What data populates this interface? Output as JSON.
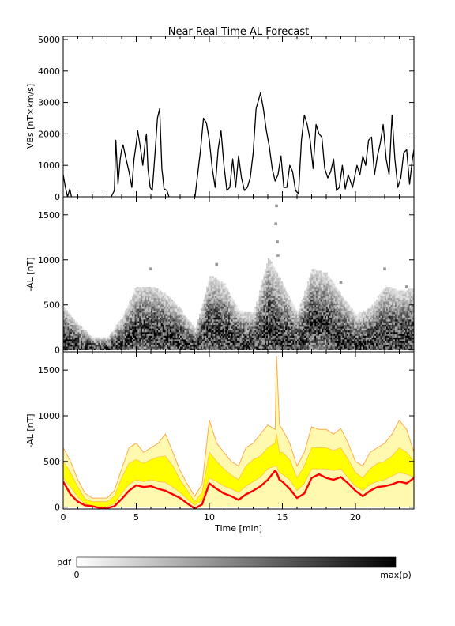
{
  "title": "Near Real Time AL Forecast",
  "colorbar": {
    "label": "pdf",
    "min_label": "0",
    "max_label": "max(p)",
    "colors": [
      "#ffffff",
      "#000000"
    ]
  },
  "chart_data": [
    {
      "panel": "top",
      "type": "line",
      "ylabel": "VBs [nT×km/s]",
      "ylim": [
        0,
        5100
      ],
      "yticks": [
        0,
        1000,
        2000,
        3000,
        4000,
        5000
      ],
      "xlim": [
        0,
        24
      ],
      "color": "#000000",
      "x": [
        0,
        0.15,
        0.3,
        0.45,
        0.6,
        1.0,
        2.0,
        3.2,
        3.5,
        3.6,
        3.75,
        3.9,
        4.0,
        4.1,
        4.3,
        4.5,
        4.7,
        4.85,
        5.0,
        5.1,
        5.3,
        5.45,
        5.6,
        5.7,
        5.8,
        5.95,
        6.1,
        6.3,
        6.45,
        6.6,
        6.75,
        6.9,
        7.1,
        7.3,
        7.5,
        7.7,
        8.0,
        8.5,
        9.0,
        9.4,
        9.6,
        9.8,
        10.0,
        10.2,
        10.4,
        10.6,
        10.8,
        11.0,
        11.2,
        11.4,
        11.6,
        11.8,
        12.0,
        12.2,
        12.4,
        12.6,
        12.8,
        13.0,
        13.2,
        13.5,
        13.7,
        13.9,
        14.1,
        14.3,
        14.5,
        14.7,
        14.9,
        15.1,
        15.3,
        15.5,
        15.7,
        15.9,
        16.1,
        16.3,
        16.5,
        16.7,
        16.9,
        17.1,
        17.3,
        17.5,
        17.7,
        17.9,
        18.1,
        18.3,
        18.5,
        18.7,
        18.9,
        19.1,
        19.3,
        19.5,
        19.8,
        20.1,
        20.3,
        20.5,
        20.7,
        20.9,
        21.1,
        21.3,
        21.5,
        21.7,
        21.9,
        22.1,
        22.3,
        22.5,
        22.7,
        22.9,
        23.1,
        23.3,
        23.5,
        23.7,
        23.9,
        24.0
      ],
      "values": [
        700,
        300,
        0,
        250,
        -80,
        -80,
        -80,
        -80,
        200,
        1800,
        400,
        1200,
        1500,
        1650,
        1200,
        800,
        300,
        1200,
        1700,
        2100,
        1500,
        1000,
        1700,
        2000,
        900,
        300,
        200,
        1500,
        2500,
        2800,
        900,
        250,
        200,
        -80,
        -80,
        -80,
        -80,
        -80,
        -80,
        1500,
        2500,
        2350,
        1800,
        900,
        300,
        1500,
        2100,
        1000,
        200,
        300,
        1200,
        300,
        1300,
        600,
        200,
        300,
        600,
        1400,
        2800,
        3300,
        2800,
        2100,
        1600,
        900,
        500,
        700,
        1300,
        300,
        300,
        1000,
        800,
        200,
        100,
        1800,
        2600,
        2300,
        1800,
        900,
        2300,
        2000,
        1900,
        900,
        600,
        800,
        1200,
        200,
        300,
        1000,
        250,
        700,
        300,
        1000,
        700,
        1300,
        1000,
        1800,
        1900,
        700,
        1300,
        1700,
        2300,
        1200,
        700,
        2600,
        1200,
        300,
        600,
        1400,
        1500,
        400,
        1200,
        1500
      ]
    },
    {
      "panel": "middle",
      "type": "heatmap",
      "ylabel": "-AL [nT]",
      "ylim": [
        -20,
        1700
      ],
      "yticks": [
        0,
        500,
        1000,
        1500
      ],
      "xlim": [
        0,
        24
      ],
      "x": [
        0,
        1,
        2,
        3,
        4,
        5,
        6,
        7,
        8,
        9,
        10,
        11,
        12,
        13,
        14,
        15,
        16,
        17,
        18,
        19,
        20,
        21,
        22,
        23,
        24
      ],
      "center": [
        120,
        60,
        20,
        20,
        80,
        250,
        250,
        200,
        120,
        40,
        280,
        220,
        100,
        80,
        300,
        180,
        80,
        350,
        300,
        150,
        80,
        100,
        200,
        180,
        200
      ],
      "spread": [
        200,
        120,
        60,
        60,
        150,
        250,
        250,
        230,
        180,
        100,
        300,
        280,
        180,
        180,
        400,
        300,
        180,
        300,
        300,
        250,
        170,
        200,
        280,
        260,
        260
      ],
      "outliers": [
        [
          14.6,
          1600
        ],
        [
          14.55,
          1400
        ],
        [
          14.65,
          1200
        ],
        [
          14.7,
          1050
        ],
        [
          10.5,
          950
        ],
        [
          6.0,
          900
        ],
        [
          22.0,
          900
        ],
        [
          19.0,
          750
        ],
        [
          23.5,
          700
        ]
      ],
      "colors": [
        "#ffffff",
        "#000000"
      ]
    },
    {
      "panel": "bottom",
      "type": "area",
      "ylabel": "-AL [nT]",
      "xlabel": "Time [min]",
      "ylim": [
        -20,
        1700
      ],
      "yticks": [
        0,
        500,
        1000,
        1500
      ],
      "xlim": [
        0,
        24
      ],
      "xticks": [
        0,
        5,
        10,
        15,
        20
      ],
      "x": [
        0,
        0.5,
        1,
        1.5,
        2,
        2.5,
        3,
        3.5,
        4,
        4.5,
        5,
        5.5,
        6,
        6.5,
        7,
        7.5,
        8,
        8.5,
        9,
        9.5,
        10,
        10.5,
        11,
        11.5,
        12,
        12.5,
        13,
        13.5,
        14,
        14.5,
        14.6,
        14.8,
        15,
        15.5,
        16,
        16.5,
        17,
        17.5,
        18,
        18.5,
        19,
        19.5,
        20,
        20.5,
        21,
        21.5,
        22,
        22.5,
        23,
        23.5,
        24
      ],
      "series": [
        {
          "role": "upper_envelope",
          "color": "#ffa94d",
          "values": [
            650,
            500,
            300,
            150,
            100,
            100,
            100,
            180,
            420,
            650,
            700,
            600,
            650,
            700,
            800,
            600,
            400,
            250,
            120,
            250,
            950,
            700,
            600,
            500,
            450,
            650,
            700,
            800,
            900,
            850,
            1650,
            900,
            850,
            700,
            450,
            600,
            880,
            850,
            850,
            800,
            860,
            700,
            500,
            450,
            600,
            650,
            700,
            800,
            950,
            850,
            600
          ]
        },
        {
          "role": "band_upper",
          "color": "#ffff00",
          "values": [
            500,
            380,
            220,
            90,
            60,
            60,
            60,
            120,
            320,
            480,
            520,
            480,
            520,
            550,
            560,
            450,
            300,
            180,
            60,
            160,
            600,
            500,
            420,
            350,
            300,
            450,
            520,
            560,
            650,
            700,
            800,
            600,
            600,
            520,
            320,
            450,
            650,
            650,
            650,
            620,
            650,
            520,
            380,
            320,
            420,
            480,
            500,
            560,
            650,
            600,
            500
          ]
        },
        {
          "role": "band_lower",
          "color": "#ffff00",
          "values": [
            320,
            220,
            110,
            40,
            10,
            5,
            5,
            40,
            150,
            250,
            300,
            280,
            300,
            280,
            270,
            220,
            160,
            90,
            20,
            80,
            320,
            280,
            230,
            200,
            160,
            230,
            280,
            330,
            420,
            450,
            450,
            380,
            360,
            300,
            180,
            260,
            420,
            420,
            420,
            400,
            420,
            320,
            230,
            180,
            250,
            280,
            300,
            340,
            380,
            360,
            330
          ]
        },
        {
          "role": "median",
          "color": "#ff0000",
          "values": [
            280,
            140,
            60,
            20,
            10,
            -10,
            -10,
            10,
            90,
            180,
            240,
            220,
            230,
            200,
            180,
            140,
            100,
            40,
            -15,
            30,
            260,
            200,
            150,
            120,
            80,
            140,
            180,
            230,
            300,
            400,
            380,
            300,
            280,
            200,
            100,
            150,
            320,
            360,
            320,
            300,
            330,
            260,
            180,
            120,
            180,
            220,
            230,
            250,
            280,
            260,
            320
          ]
        }
      ]
    }
  ]
}
